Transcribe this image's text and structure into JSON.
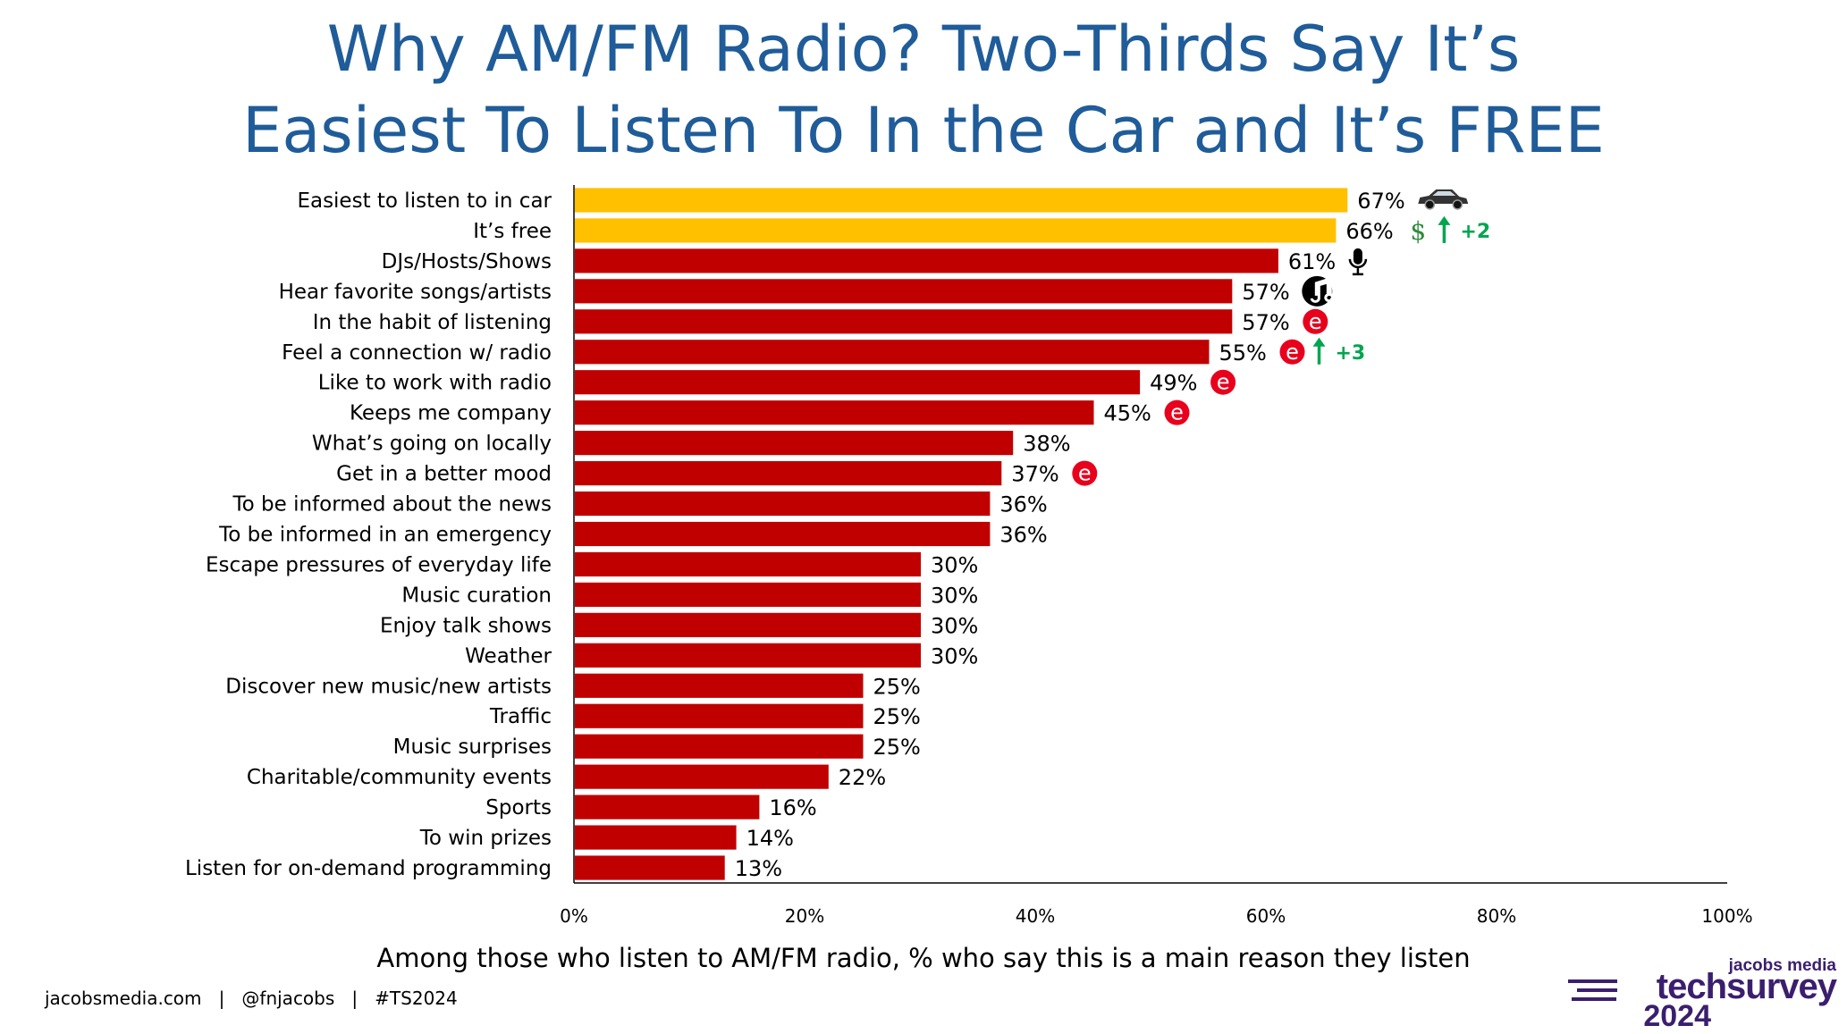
{
  "title_line1": "Why AM/FM Radio? Two-Thirds Say It’s",
  "title_line2": "Easiest To Listen To In the Car and It’s FREE",
  "subtitle": "Among those who listen to AM/FM radio, % who say this is a main reason they listen",
  "footer": "jacobsmedia.com   |   @fnjacobs   |   #TS2024",
  "logo": {
    "top": "jacobs media",
    "main": "techsurvey",
    "year": "2024"
  },
  "colors": {
    "highlight": "#ffc000",
    "bar": "#c00000",
    "title": "#1f5c99",
    "change": "#00a550",
    "icon_e": "#e8001c"
  },
  "chart_data": {
    "type": "bar",
    "orientation": "horizontal",
    "xlim": [
      0,
      100
    ],
    "xticks": [
      "0%",
      "20%",
      "40%",
      "60%",
      "80%",
      "100%"
    ],
    "categories": [
      "Easiest to listen to in car",
      "It’s free",
      "DJs/Hosts/Shows",
      "Hear favorite songs/artists",
      "In the habit of listening",
      "Feel a connection w/ radio",
      "Like to work with radio",
      "Keeps me company",
      "What’s going on locally",
      "Get in a better mood",
      "To be informed about the news",
      "To be informed in an emergency",
      "Escape pressures of everyday life",
      "Music curation",
      "Enjoy talk shows",
      "Weather",
      "Discover new music/new artists",
      "Traffic",
      "Music surprises",
      "Charitable/community events",
      "Sports",
      "To win prizes",
      "Listen for on-demand programming"
    ],
    "values": [
      67,
      66,
      61,
      57,
      57,
      55,
      49,
      45,
      38,
      37,
      36,
      36,
      30,
      30,
      30,
      30,
      25,
      25,
      25,
      22,
      16,
      14,
      13
    ],
    "labels": [
      "67%",
      "66%",
      "61%",
      "57%",
      "57%",
      "55%",
      "49%",
      "45%",
      "38%",
      "37%",
      "36%",
      "36%",
      "30%",
      "30%",
      "30%",
      "30%",
      "25%",
      "25%",
      "25%",
      "22%",
      "16%",
      "14%",
      "13%"
    ],
    "highlighted": [
      0,
      1
    ],
    "icons": [
      {
        "index": 0,
        "icon": "car-icon"
      },
      {
        "index": 1,
        "icon": "dollar-icon"
      },
      {
        "index": 2,
        "icon": "microphone-icon"
      },
      {
        "index": 3,
        "icon": "music-note-icon"
      },
      {
        "index": 4,
        "icon": "e-icon"
      },
      {
        "index": 5,
        "icon": "e-icon"
      },
      {
        "index": 6,
        "icon": "e-icon"
      },
      {
        "index": 7,
        "icon": "e-icon"
      },
      {
        "index": 9,
        "icon": "e-icon"
      }
    ],
    "dollar_glyph": "$",
    "e_glyph": "e",
    "changes": [
      {
        "index": 1,
        "label": "+2"
      },
      {
        "index": 5,
        "label": "+3"
      }
    ]
  }
}
